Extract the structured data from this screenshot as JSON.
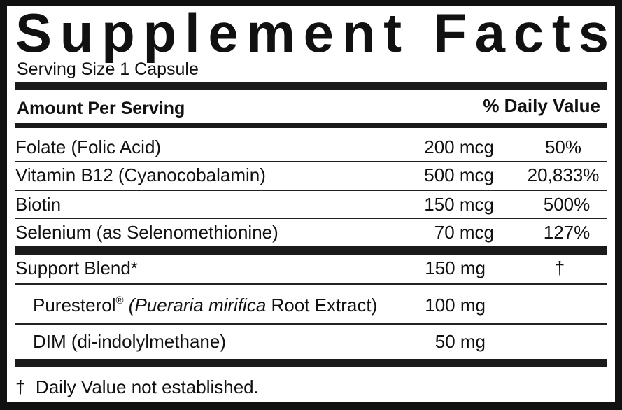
{
  "title": "Supplement Facts",
  "serving_size": "Serving Size 1 Capsule",
  "header": {
    "amount": "Amount Per Serving",
    "daily_value": "% Daily Value"
  },
  "nutrients": [
    {
      "name": "Folate (Folic Acid)",
      "amount": "200 mcg",
      "dv": "50%"
    },
    {
      "name": "Vitamin B12 (Cyanocobalamin)",
      "amount": "500 mcg",
      "dv": "20,833%"
    },
    {
      "name": "Biotin",
      "amount": "150 mcg",
      "dv": "500%"
    },
    {
      "name": "Selenium (as Selenomethionine)",
      "amount": "70 mcg",
      "dv": "127%"
    }
  ],
  "blend": {
    "name": "Support Blend*",
    "amount": "150 mg",
    "dv": "†",
    "items": [
      {
        "name": "Puresterol",
        "mark": "®",
        "italic": "(Pueraria mirifica",
        "rest": " Root Extract)",
        "amount": "100 mg"
      },
      {
        "name": "DIM (di-indolylmethane)",
        "amount": "50 mg"
      }
    ]
  },
  "footnote": {
    "symbol": "†",
    "text": "Daily Value not established."
  }
}
